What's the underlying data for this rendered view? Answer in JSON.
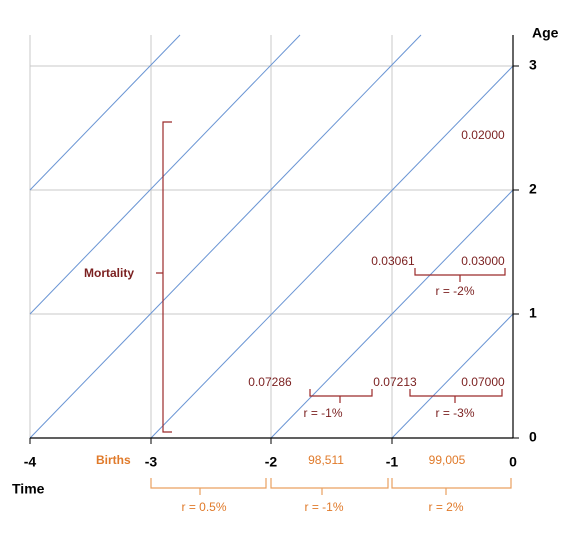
{
  "axes": {
    "y_title": "Age",
    "x_title": "Time",
    "x_ticks": [
      "-4",
      "-3",
      "-2",
      "-1",
      "0"
    ],
    "y_ticks": [
      "0",
      "1",
      "2",
      "3"
    ]
  },
  "births": {
    "label": "Births",
    "counts": [
      "98,511",
      "99,005"
    ],
    "growth": [
      "r = 0.5%",
      "r = -1%",
      "r = 2%"
    ]
  },
  "mortality": {
    "label": "Mortality",
    "rates": [
      "0.02000",
      "0.03061",
      "0.03000",
      "0.07286",
      "0.07213",
      "0.07000"
    ],
    "growth": [
      "r = -2%",
      "r = -1%",
      "r = -3%"
    ]
  }
}
